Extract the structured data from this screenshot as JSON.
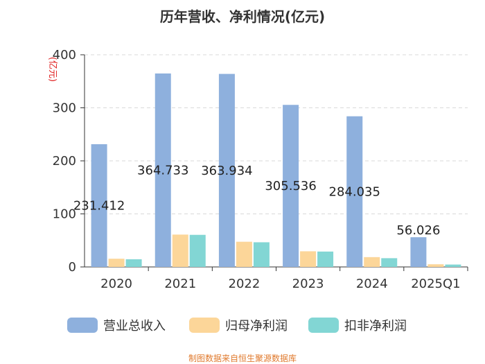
{
  "chart_data": {
    "type": "bar",
    "title": "历年营收、净利情况(亿元)",
    "ylabel": "(亿元)",
    "xlabel": "",
    "ylim": [
      0,
      400
    ],
    "yticks": [
      0,
      100,
      200,
      300,
      400
    ],
    "grid": true,
    "legend_position": "bottom",
    "categories": [
      "2020",
      "2021",
      "2022",
      "2023",
      "2024",
      "2025Q1"
    ],
    "series": [
      {
        "name": "营业总收入",
        "color": "#8eb0dd",
        "values": [
          231.412,
          364.733,
          363.934,
          305.536,
          284.035,
          56.026
        ],
        "labels": [
          "231.412",
          "364.733",
          "363.934",
          "305.536",
          "284.035",
          "56.026"
        ]
      },
      {
        "name": "归母净利润",
        "color": "#fcd699",
        "values": [
          15.5,
          61.0,
          47.5,
          29.5,
          18.5,
          5.0
        ]
      },
      {
        "name": "扣非净利润",
        "color": "#82d6d4",
        "values": [
          14.5,
          60.5,
          46.5,
          29.0,
          16.5,
          4.5
        ]
      }
    ]
  },
  "footer": {
    "source": "制图数据来自恒生聚源数据库"
  }
}
